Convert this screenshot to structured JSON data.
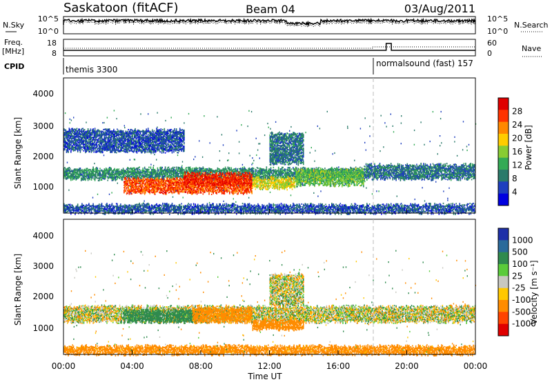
{
  "header": {
    "station": "Saskatoon (fitACF)",
    "beam": "Beam 04",
    "date": "03/Aug/2011"
  },
  "noise_panel": {
    "left_label": "N.Sky",
    "right_label": "N.Search",
    "left_ticks": [
      "10^5",
      "10^0"
    ],
    "right_ticks": [
      "10^5",
      "10^0"
    ]
  },
  "freq_panel": {
    "left_label_line1": "Freq.",
    "left_label_line2": "[MHz]",
    "right_label": "Nave",
    "left_ticks": [
      "18",
      "8"
    ],
    "right_ticks": [
      "60",
      "0"
    ]
  },
  "cpid": {
    "label": "CPID",
    "segments": [
      {
        "name": "themis 3300",
        "start_hour": 0,
        "end_hour": 18.0
      },
      {
        "name": "normalsound (fast) 157",
        "start_hour": 18.0,
        "end_hour": 24
      }
    ]
  },
  "power_panel": {
    "ylabel": "Slant Range [km]",
    "colorbar_label": "Power [dB]",
    "colorbar_ticks": [
      "28",
      "24",
      "20",
      "16",
      "12",
      "8",
      "4"
    ],
    "colors": [
      "#e00000",
      "#ff3300",
      "#ff8800",
      "#ffcc00",
      "#88cc33",
      "#33aa55",
      "#2a7a6a",
      "#1e3fbf",
      "#0000e0"
    ]
  },
  "velocity_panel": {
    "ylabel": "Slant Range [km]",
    "colorbar_label": "Velocity [m s⁻¹]",
    "colorbar_ticks": [
      "1000",
      "500",
      "100",
      "25",
      "-25",
      "-100",
      "-500",
      "-1000"
    ],
    "colors": [
      "#1e2fa8",
      "#2a6a9a",
      "#2f8a4e",
      "#5acb3a",
      "#c8c8c0",
      "#ffc800",
      "#ff8c00",
      "#ff4400",
      "#e00000"
    ]
  },
  "time_axis": {
    "label": "Time UT",
    "ticks": [
      "00:00",
      "04:00",
      "08:00",
      "12:00",
      "16:00",
      "20:00",
      "00:00"
    ]
  },
  "range_ticks": [
    "4000",
    "3000",
    "2000",
    "1000"
  ],
  "chart_data": {
    "type": "heatmap",
    "x_unit": "hours UT",
    "xlim": [
      0,
      24
    ],
    "ylim": [
      200,
      4600
    ],
    "power_bands": [
      {
        "t0": 0,
        "t1": 17.5,
        "r0": 1300,
        "r1": 1650,
        "db": 10
      },
      {
        "t0": 17.5,
        "t1": 24,
        "r0": 1300,
        "r1": 1750,
        "db": 8
      },
      {
        "t0": 3.5,
        "t1": 11,
        "r0": 850,
        "r1": 1300,
        "db": 26
      },
      {
        "t0": 7,
        "t1": 11,
        "r0": 1100,
        "r1": 1500,
        "db": 28
      },
      {
        "t0": 11,
        "t1": 13.5,
        "r0": 1000,
        "r1": 1350,
        "db": 18
      },
      {
        "t0": 13.5,
        "t1": 17.5,
        "r0": 1100,
        "r1": 1600,
        "db": 14
      },
      {
        "t0": 0,
        "t1": 24,
        "r0": 200,
        "r1": 450,
        "db": 6
      },
      {
        "t0": 0,
        "t1": 7,
        "r0": 2200,
        "r1": 2900,
        "db": 6
      },
      {
        "t0": 12,
        "t1": 14,
        "r0": 1800,
        "r1": 2800,
        "db": 8
      }
    ],
    "velocity_bands": [
      {
        "t0": 0,
        "t1": 24,
        "r0": 1250,
        "r1": 1750,
        "v": 0
      },
      {
        "t0": 3.5,
        "t1": 8,
        "r0": 1250,
        "r1": 1650,
        "v": 150
      },
      {
        "t0": 7.5,
        "t1": 11,
        "r0": 1250,
        "r1": 1700,
        "v": -150
      },
      {
        "t0": 11,
        "t1": 14,
        "r0": 1000,
        "r1": 1300,
        "v": -200
      },
      {
        "t0": 0,
        "t1": 24,
        "r0": 200,
        "r1": 450,
        "v": -150
      },
      {
        "t0": 12,
        "t1": 14,
        "r0": 1800,
        "r1": 2800,
        "v": 0
      }
    ]
  }
}
